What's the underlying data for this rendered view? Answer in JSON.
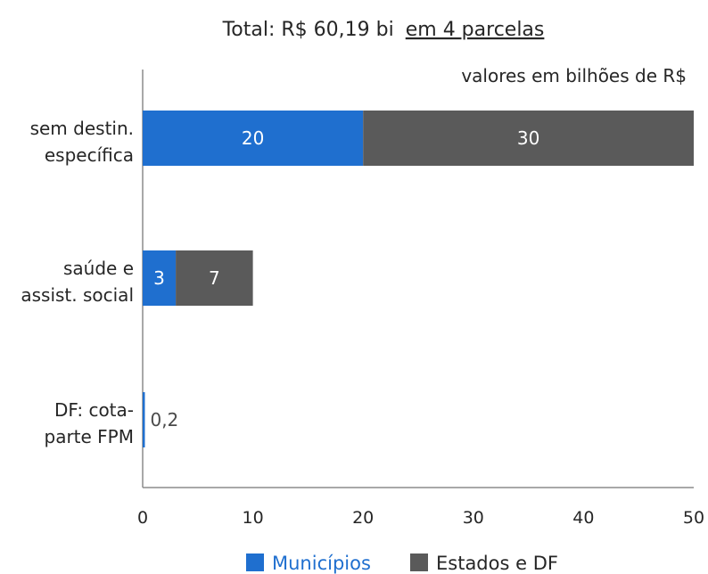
{
  "chart_data": {
    "type": "bar",
    "orientation": "horizontal",
    "stacked": true,
    "title_prefix": "Total: R$ 60,19 bi",
    "title_underlined": "em 4 parcelas",
    "note": "valores em bilhões de R$",
    "categories": [
      [
        "sem destin.",
        "específica"
      ],
      [
        "saúde e",
        "assist. social"
      ],
      [
        "DF: cota-",
        "parte FPM"
      ]
    ],
    "series": [
      {
        "name": "Municípios",
        "color": "#1f6fcf",
        "values": [
          20,
          3,
          0.2
        ],
        "labels": [
          "20",
          "3",
          "0,2"
        ]
      },
      {
        "name": "Estados e DF",
        "color": "#5a5a5a",
        "values": [
          30,
          7,
          0
        ],
        "labels": [
          "30",
          "7",
          ""
        ]
      }
    ],
    "xlim": [
      0,
      50
    ],
    "xticks": [
      0,
      10,
      20,
      30,
      40,
      50
    ],
    "grid": false,
    "legend_position": "bottom",
    "legend_text_colors": [
      "#1f6fcf",
      "#262626"
    ]
  }
}
